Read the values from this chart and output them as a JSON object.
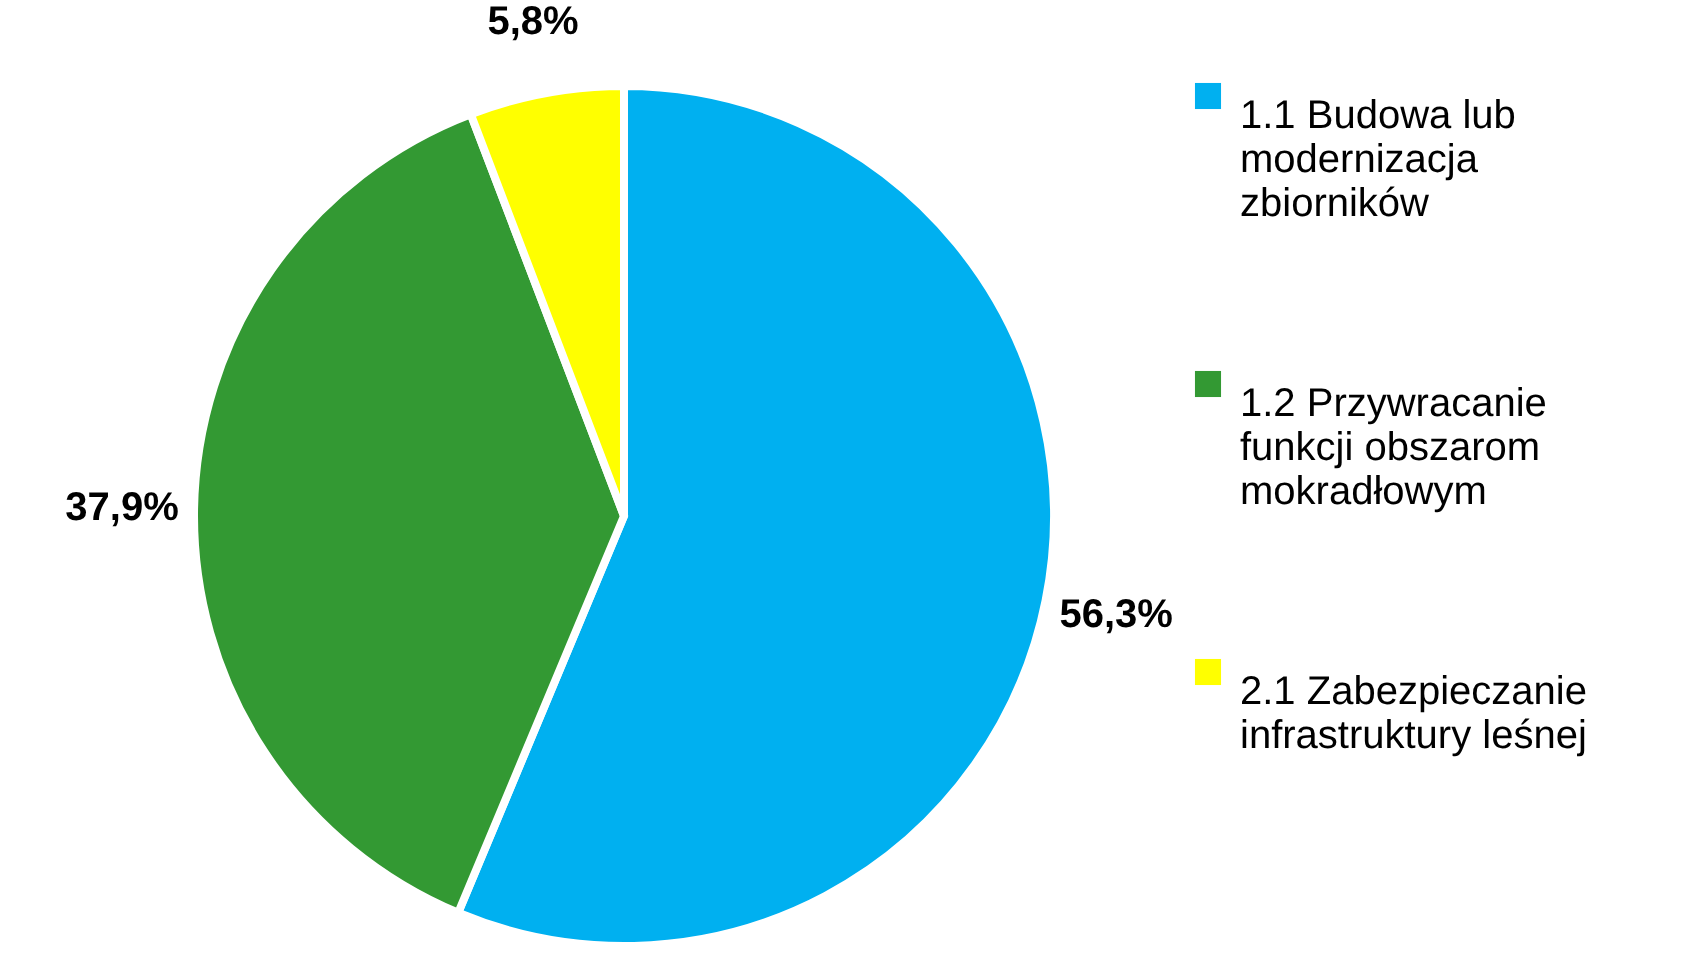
{
  "chart_data": {
    "type": "pie",
    "categories": [
      "1.1 Budowa lub modernizacja zbiorników",
      "1.2 Przywracanie funkcji obszarom mokradłowym",
      "2.1 Zabezpieczanie infrastruktury leśnej"
    ],
    "values": [
      56.3,
      37.9,
      5.8
    ],
    "value_labels": [
      "56,3%",
      "37,9%",
      "5,8%"
    ],
    "colors": [
      "#00b0f0",
      "#339933",
      "#ffff00"
    ],
    "legend": "right"
  }
}
